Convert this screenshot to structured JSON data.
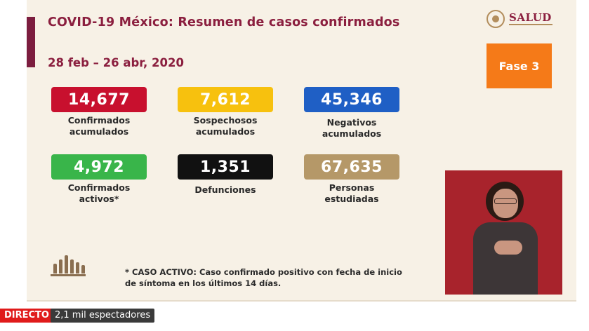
{
  "slide": {
    "title": "COVID-19 México: Resumen de casos confirmados",
    "date_range": "28 feb – 26 abr, 2020",
    "logo_text": "SALUD",
    "phase": "Fase 3",
    "stats": [
      {
        "value": "14,677",
        "label_1": "Confirmados",
        "label_2": "acumulados",
        "color": "#c8102e"
      },
      {
        "value": "7,612",
        "label_1": "Sospechosos",
        "label_2": "acumulados",
        "color": "#f7c10e"
      },
      {
        "value": "45,346",
        "label_1": "Negativos",
        "label_2": "acumulados",
        "color": "#1f5fc5"
      },
      {
        "value": "4,972",
        "label_1": "Confirmados",
        "label_2": "activos*",
        "color": "#39b54a"
      },
      {
        "value": "1,351",
        "label_1": "Defunciones",
        "label_2": "",
        "color": "#111111"
      },
      {
        "value": "67,635",
        "label_1": "Personas",
        "label_2": "estudiadas",
        "color": "#b59868"
      }
    ],
    "footnote_1": "* CASO ACTIVO: Caso confirmado positivo con fecha de inicio",
    "footnote_2": "de síntoma en los últimos 14 días."
  },
  "stream": {
    "live_label": "DIRECTO",
    "viewers": "2,1 mil espectadores"
  },
  "colors": {
    "brand": "#8b1f3f",
    "phase": "#f57a18",
    "interpreter_bg": "#a8232c",
    "live": "#e01b1b"
  }
}
